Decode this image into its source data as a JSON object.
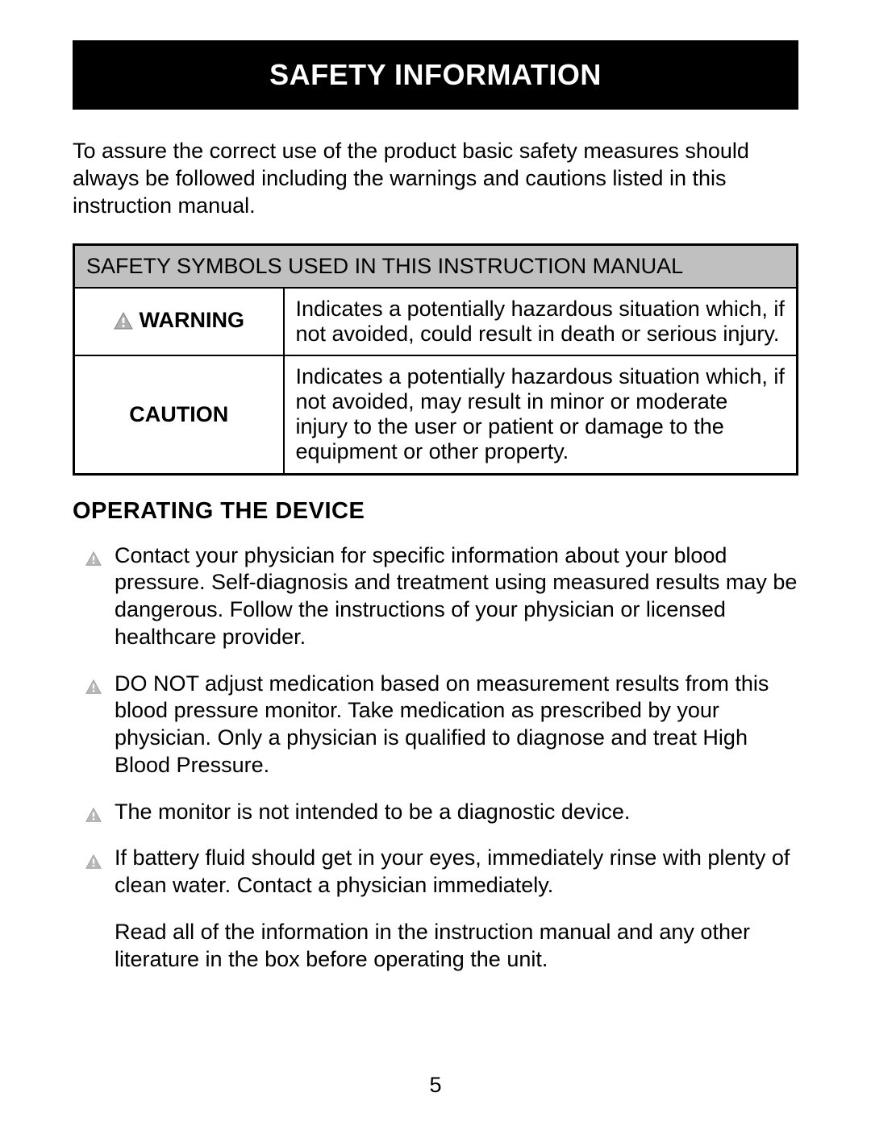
{
  "banner_title": "SAFETY INFORMATION",
  "intro_paragraph": "To assure the correct use of the product basic safety measures should always be followed including the warnings and cautions listed in this instruction manual.",
  "symbols_table": {
    "header": "SAFETY SYMBOLS USED IN THIS INSTRUCTION MANUAL",
    "rows": [
      {
        "has_icon": true,
        "label": "WARNING",
        "description": "Indicates a potentially hazardous situation which, if not avoided, could result in death or serious injury."
      },
      {
        "has_icon": false,
        "label": "CAUTION",
        "description": "Indicates a potentially hazardous situation which, if not avoided, may result in minor or moderate injury to the user or patient or damage to the equipment or other property."
      }
    ]
  },
  "section_heading": "OPERATING THE DEVICE",
  "bullets": [
    "Contact your physician for specific information about your blood pressure. Self-diagnosis and treatment using measured results may be dangerous. Follow the instructions of your physician or licensed healthcare provider.",
    "DO NOT adjust medication based on measurement results from this blood pressure monitor. Take medication as prescribed by your physician. Only a physician is qualified to diagnose and treat High Blood Pressure.",
    "The monitor is not intended to be a diagnostic device.",
    "If battery fluid should get in your eyes, immediately rinse with plenty of clean water. Contact a physician immediately."
  ],
  "note_paragraph": "Read all of the information in the instruction manual and any other literature in the box before operating the unit.",
  "page_number": "5",
  "icon_colors": {
    "large_fill": "#b0b0b0",
    "large_stroke": "#808080",
    "small_fill": "#b8b8b8",
    "small_stroke": "#9a9a9a"
  }
}
